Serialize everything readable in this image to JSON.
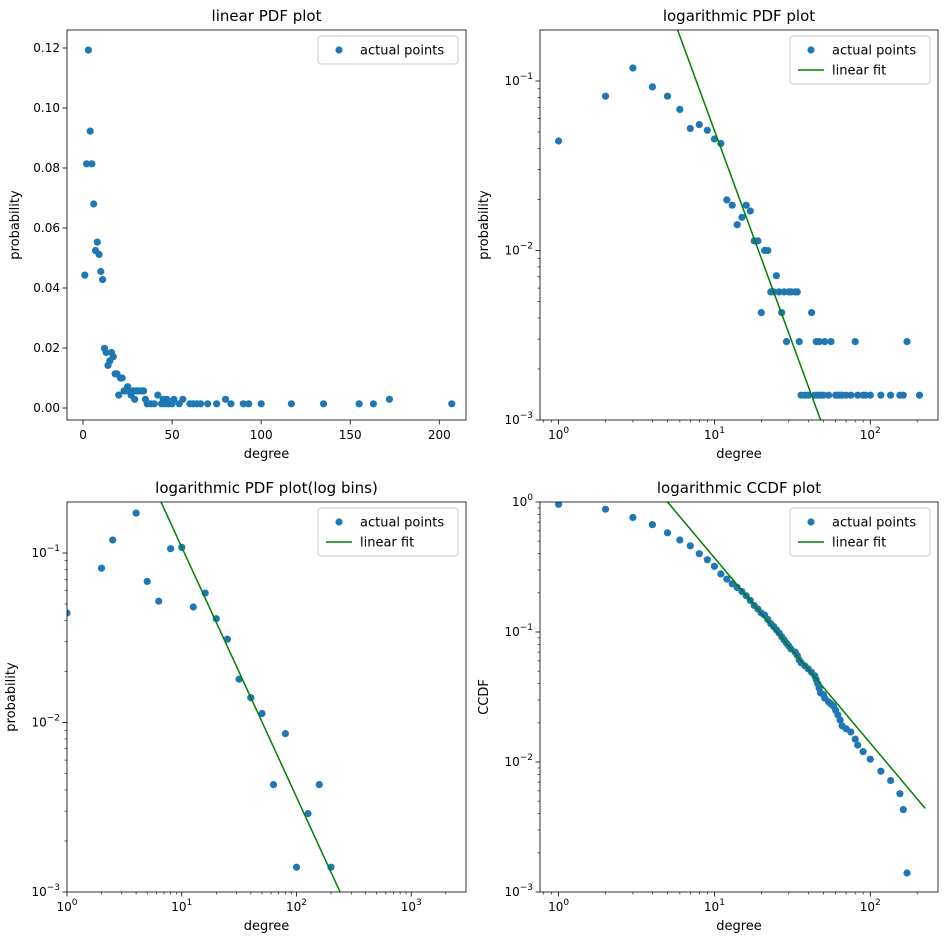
{
  "chart_data": [
    {
      "type": "scatter",
      "title": "linear PDF plot",
      "xlabel": "degree",
      "ylabel": "probability",
      "xscale": "linear",
      "yscale": "linear",
      "xlim": [
        -9,
        215
      ],
      "ylim": [
        -0.004,
        0.126
      ],
      "xticks": [
        0,
        50,
        100,
        150,
        200
      ],
      "xtick_labels": [
        "0",
        "50",
        "100",
        "150",
        "200"
      ],
      "yticks": [
        0,
        0.02,
        0.04,
        0.06,
        0.08,
        0.1,
        0.12
      ],
      "ytick_labels": [
        "0.00",
        "0.02",
        "0.04",
        "0.06",
        "0.08",
        "0.10",
        "0.12"
      ],
      "grid": false,
      "legend_position": "top-right",
      "series": [
        {
          "name": "actual points",
          "kind": "marker",
          "color": "#1f77b4",
          "points": [
            [
              1,
              0.0443
            ],
            [
              2,
              0.0814
            ],
            [
              3,
              0.1193
            ],
            [
              4,
              0.0923
            ],
            [
              5,
              0.0814
            ],
            [
              6,
              0.068
            ],
            [
              7,
              0.0525
            ],
            [
              8,
              0.0553
            ],
            [
              9,
              0.0512
            ],
            [
              10,
              0.0455
            ],
            [
              11,
              0.0428
            ],
            [
              12,
              0.0199
            ],
            [
              13,
              0.0185
            ],
            [
              14,
              0.0142
            ],
            [
              15,
              0.0157
            ],
            [
              16,
              0.0185
            ],
            [
              17,
              0.0171
            ],
            [
              18,
              0.0114
            ],
            [
              19,
              0.0114
            ],
            [
              20,
              0.0043
            ],
            [
              21,
              0.01
            ],
            [
              22,
              0.01
            ],
            [
              23,
              0.0057
            ],
            [
              24,
              0.0057
            ],
            [
              25,
              0.0071
            ],
            [
              26,
              0.0057
            ],
            [
              27,
              0.0043
            ],
            [
              28,
              0.0057
            ],
            [
              29,
              0.0029
            ],
            [
              30,
              0.0057
            ],
            [
              31,
              0.0057
            ],
            [
              33,
              0.0057
            ],
            [
              34,
              0.0057
            ],
            [
              35,
              0.0029
            ],
            [
              36,
              0.0014
            ],
            [
              38,
              0.0014
            ],
            [
              40,
              0.0014
            ],
            [
              42,
              0.0043
            ],
            [
              44,
              0.0014
            ],
            [
              45,
              0.0029
            ],
            [
              46,
              0.0014
            ],
            [
              47,
              0.0029
            ],
            [
              48,
              0.0014
            ],
            [
              50,
              0.0014
            ],
            [
              51,
              0.0029
            ],
            [
              54,
              0.0014
            ],
            [
              56,
              0.0029
            ],
            [
              60,
              0.0014
            ],
            [
              62,
              0.0014
            ],
            [
              64,
              0.0014
            ],
            [
              66,
              0.0014
            ],
            [
              70,
              0.0014
            ],
            [
              75,
              0.0014
            ],
            [
              80,
              0.0029
            ],
            [
              83,
              0.0014
            ],
            [
              90,
              0.0014
            ],
            [
              93,
              0.0014
            ],
            [
              100,
              0.0014
            ],
            [
              117,
              0.0014
            ],
            [
              135,
              0.0014
            ],
            [
              155,
              0.0014
            ],
            [
              163,
              0.0014
            ],
            [
              172,
              0.0029
            ],
            [
              207,
              0.0014
            ]
          ]
        }
      ]
    },
    {
      "type": "scatter",
      "title": "logarithmic PDF plot",
      "xlabel": "degree",
      "ylabel": "probability",
      "xscale": "log",
      "yscale": "log",
      "xlim": [
        0.76,
        272
      ],
      "ylim": [
        0.001,
        0.2
      ],
      "xticks": [
        1,
        10,
        100
      ],
      "xtick_labels": [
        [
          "10",
          "0"
        ],
        [
          "10",
          "1"
        ],
        [
          "10",
          "2"
        ]
      ],
      "yticks": [
        0.001,
        0.01,
        0.1
      ],
      "ytick_labels": [
        [
          "10",
          "−3"
        ],
        [
          "10",
          "−2"
        ],
        [
          "10",
          "−1"
        ]
      ],
      "grid": false,
      "legend_position": "top-right",
      "series": [
        {
          "name": "actual points",
          "kind": "marker",
          "color": "#1f77b4",
          "points": [
            [
              1,
              0.0443
            ],
            [
              2,
              0.0814
            ],
            [
              3,
              0.1193
            ],
            [
              4,
              0.0923
            ],
            [
              5,
              0.0814
            ],
            [
              6,
              0.068
            ],
            [
              7,
              0.0525
            ],
            [
              8,
              0.0553
            ],
            [
              9,
              0.0512
            ],
            [
              10,
              0.0455
            ],
            [
              11,
              0.0428
            ],
            [
              12,
              0.0199
            ],
            [
              13,
              0.0185
            ],
            [
              14,
              0.0142
            ],
            [
              15,
              0.0157
            ],
            [
              16,
              0.0185
            ],
            [
              17,
              0.0171
            ],
            [
              18,
              0.0114
            ],
            [
              19,
              0.0114
            ],
            [
              20,
              0.0043
            ],
            [
              21,
              0.01
            ],
            [
              22,
              0.01
            ],
            [
              23,
              0.0057
            ],
            [
              24,
              0.0057
            ],
            [
              25,
              0.0071
            ],
            [
              26,
              0.0057
            ],
            [
              27,
              0.0043
            ],
            [
              28,
              0.0057
            ],
            [
              29,
              0.0029
            ],
            [
              30,
              0.0057
            ],
            [
              31,
              0.0057
            ],
            [
              33,
              0.0057
            ],
            [
              34,
              0.0057
            ],
            [
              35,
              0.0029
            ],
            [
              36,
              0.0014
            ],
            [
              38,
              0.0014
            ],
            [
              40,
              0.0014
            ],
            [
              42,
              0.0043
            ],
            [
              44,
              0.0014
            ],
            [
              45,
              0.0029
            ],
            [
              46,
              0.0014
            ],
            [
              47,
              0.0029
            ],
            [
              48,
              0.0014
            ],
            [
              50,
              0.0014
            ],
            [
              51,
              0.0029
            ],
            [
              54,
              0.0014
            ],
            [
              56,
              0.0029
            ],
            [
              60,
              0.0014
            ],
            [
              62,
              0.0014
            ],
            [
              64,
              0.0014
            ],
            [
              66,
              0.0014
            ],
            [
              70,
              0.0014
            ],
            [
              75,
              0.0014
            ],
            [
              80,
              0.0029
            ],
            [
              83,
              0.0014
            ],
            [
              90,
              0.0014
            ],
            [
              93,
              0.0014
            ],
            [
              100,
              0.0014
            ],
            [
              117,
              0.0014
            ],
            [
              135,
              0.0014
            ],
            [
              155,
              0.0014
            ],
            [
              163,
              0.0014
            ],
            [
              172,
              0.0029
            ],
            [
              207,
              0.0014
            ]
          ]
        },
        {
          "name": "linear fit",
          "kind": "line",
          "color": "#008000",
          "points": [
            [
              5.8,
              0.2
            ],
            [
              48,
              0.001
            ]
          ]
        }
      ]
    },
    {
      "type": "scatter",
      "title": "logarithmic PDF plot(log bins)",
      "xlabel": "degree",
      "ylabel": "probability",
      "xscale": "log",
      "yscale": "log",
      "xlim": [
        1,
        3000
      ],
      "ylim": [
        0.001,
        0.2
      ],
      "xticks": [
        1,
        10,
        100,
        1000
      ],
      "xtick_labels": [
        [
          "10",
          "0"
        ],
        [
          "10",
          "1"
        ],
        [
          "10",
          "2"
        ],
        [
          "10",
          "3"
        ]
      ],
      "yticks": [
        0.001,
        0.01,
        0.1
      ],
      "ytick_labels": [
        [
          "10",
          "−3"
        ],
        [
          "10",
          "−2"
        ],
        [
          "10",
          "−1"
        ]
      ],
      "grid": false,
      "legend_position": "top-right",
      "series": [
        {
          "name": "actual points",
          "kind": "marker",
          "color": "#1f77b4",
          "points": [
            [
              1,
              0.0443
            ],
            [
              2,
              0.0814
            ],
            [
              2.5,
              0.1193
            ],
            [
              4,
              0.172
            ],
            [
              5,
              0.068
            ],
            [
              6.3,
              0.052
            ],
            [
              8,
              0.106
            ],
            [
              10,
              0.108
            ],
            [
              12.6,
              0.048
            ],
            [
              16,
              0.058
            ],
            [
              20,
              0.041
            ],
            [
              25,
              0.031
            ],
            [
              31.6,
              0.018
            ],
            [
              40,
              0.014
            ],
            [
              50,
              0.0113
            ],
            [
              63,
              0.0043
            ],
            [
              80,
              0.0086
            ],
            [
              100,
              0.0014
            ],
            [
              126,
              0.0029
            ],
            [
              158,
              0.0043
            ],
            [
              200,
              0.0014
            ]
          ]
        },
        {
          "name": "linear fit",
          "kind": "line",
          "color": "#008000",
          "points": [
            [
              6.6,
              0.2
            ],
            [
              240,
              0.001
            ]
          ]
        }
      ]
    },
    {
      "type": "scatter",
      "title": "logarithmic CCDF plot",
      "xlabel": "degree",
      "ylabel": "CCDF",
      "xscale": "log",
      "yscale": "log",
      "xlim": [
        0.76,
        272
      ],
      "ylim": [
        0.001,
        1
      ],
      "xticks": [
        1,
        10,
        100
      ],
      "xtick_labels": [
        [
          "10",
          "0"
        ],
        [
          "10",
          "1"
        ],
        [
          "10",
          "2"
        ]
      ],
      "yticks": [
        0.001,
        0.01,
        0.1,
        1
      ],
      "ytick_labels": [
        [
          "10",
          "−3"
        ],
        [
          "10",
          "−2"
        ],
        [
          "10",
          "−1"
        ],
        [
          "10",
          "0"
        ]
      ],
      "grid": false,
      "legend_position": "top-right",
      "series": [
        {
          "name": "actual points",
          "kind": "marker",
          "color": "#1f77b4",
          "points": [
            [
              1,
              0.96
            ],
            [
              2,
              0.88
            ],
            [
              3,
              0.76
            ],
            [
              4,
              0.67
            ],
            [
              5,
              0.58
            ],
            [
              6,
              0.51
            ],
            [
              7,
              0.46
            ],
            [
              8,
              0.4
            ],
            [
              9,
              0.36
            ],
            [
              10,
              0.32
            ],
            [
              11,
              0.28
            ],
            [
              12,
              0.255
            ],
            [
              13,
              0.235
            ],
            [
              14,
              0.22
            ],
            [
              15,
              0.205
            ],
            [
              16,
              0.19
            ],
            [
              17,
              0.175
            ],
            [
              18,
              0.16
            ],
            [
              19,
              0.15
            ],
            [
              20,
              0.14
            ],
            [
              21,
              0.135
            ],
            [
              22,
              0.125
            ],
            [
              23,
              0.116
            ],
            [
              24,
              0.11
            ],
            [
              25,
              0.104
            ],
            [
              26,
              0.098
            ],
            [
              27,
              0.092
            ],
            [
              28,
              0.087
            ],
            [
              29,
              0.082
            ],
            [
              30,
              0.078
            ],
            [
              31,
              0.074
            ],
            [
              33,
              0.07
            ],
            [
              34,
              0.066
            ],
            [
              35,
              0.061
            ],
            [
              36,
              0.058
            ],
            [
              38,
              0.055
            ],
            [
              40,
              0.052
            ],
            [
              42,
              0.049
            ],
            [
              44,
              0.046
            ],
            [
              45,
              0.043
            ],
            [
              46,
              0.04
            ],
            [
              47,
              0.037
            ],
            [
              48,
              0.034
            ],
            [
              50,
              0.033
            ],
            [
              51,
              0.031
            ],
            [
              54,
              0.029
            ],
            [
              56,
              0.028
            ],
            [
              58,
              0.027
            ],
            [
              60,
              0.025
            ],
            [
              62,
              0.023
            ],
            [
              64,
              0.021
            ],
            [
              66,
              0.019
            ],
            [
              70,
              0.018
            ],
            [
              75,
              0.017
            ],
            [
              80,
              0.015
            ],
            [
              83,
              0.0135
            ],
            [
              90,
              0.012
            ],
            [
              100,
              0.0105
            ],
            [
              117,
              0.0085
            ],
            [
              135,
              0.0072
            ],
            [
              155,
              0.0057
            ],
            [
              163,
              0.0043
            ],
            [
              172,
              0.0014
            ]
          ]
        },
        {
          "name": "linear fit",
          "kind": "line",
          "color": "#008000",
          "points": [
            [
              5,
              1.0
            ],
            [
              225,
              0.0044
            ]
          ]
        }
      ]
    }
  ]
}
